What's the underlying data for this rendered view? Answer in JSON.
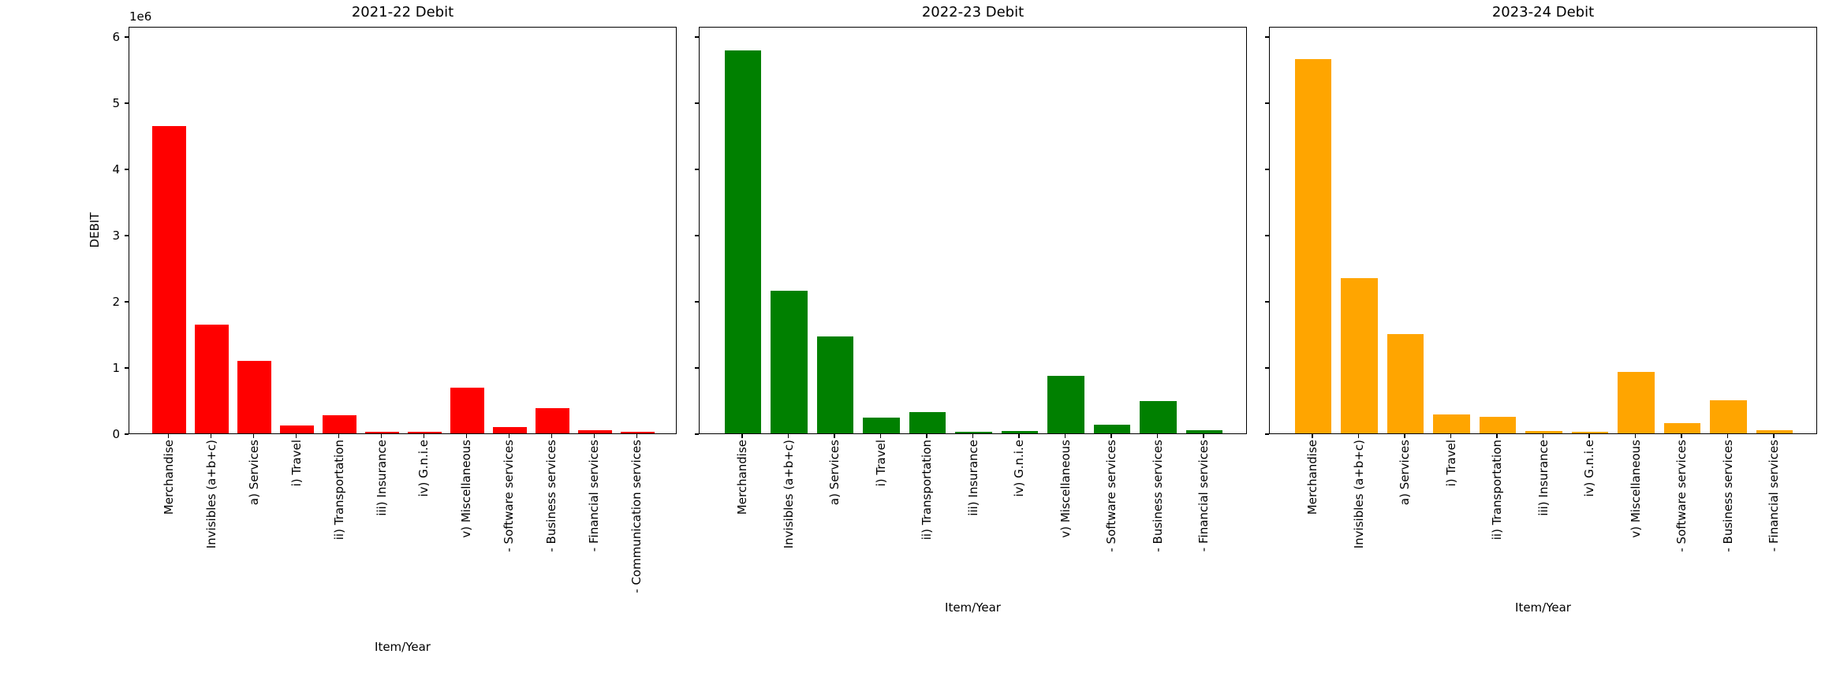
{
  "figure": {
    "background": "#ffffff",
    "text_color": "#000000",
    "spine_color": "#000000"
  },
  "shared_y_axis": {
    "ylabel": "DEBIT",
    "offset_text": "1e6",
    "tick_labels": [
      "0",
      "1",
      "2",
      "3",
      "4",
      "5",
      "6"
    ],
    "tick_values": [
      0,
      1000000,
      2000000,
      3000000,
      4000000,
      5000000,
      6000000
    ]
  },
  "chart_data": [
    {
      "type": "bar",
      "title": "2021-22 Debit",
      "xlabel": "Item/Year",
      "ylabel": "DEBIT",
      "bar_color": "#ff0000",
      "ylim": [
        0,
        6155000
      ],
      "y_tick_step": 1000000,
      "y_offset_notation": "1e6",
      "grid": false,
      "x_tick_rotation": 90,
      "categories": [
        "Merchandise",
        "Invisibles (a+b+c)",
        "a) Services",
        "i) Travel",
        "ii) Transportation",
        "iii) Insurance",
        "iv) G.n.i.e",
        "v) Miscellaneous",
        "- Software services",
        "- Business services",
        "- Financial services",
        "- Communication services"
      ],
      "values": [
        4640000,
        1640000,
        1100000,
        125000,
        270000,
        22000,
        25000,
        695000,
        92000,
        380000,
        45000,
        20000
      ]
    },
    {
      "type": "bar",
      "title": "2022-23 Debit",
      "xlabel": "Item/Year",
      "ylabel": "",
      "bar_color": "#008000",
      "ylim": [
        0,
        6155000
      ],
      "y_tick_step": 1000000,
      "grid": false,
      "x_tick_rotation": 90,
      "categories": [
        "Merchandise",
        "Invisibles (a+b+c)",
        "a) Services",
        "i) Travel",
        "ii) Transportation",
        "iii) Insurance",
        "iv) G.n.i.e",
        "v) Miscellaneous",
        "- Software services",
        "- Business services",
        "- Financial services"
      ],
      "values": [
        5790000,
        2160000,
        1465000,
        235000,
        325000,
        28000,
        30000,
        875000,
        135000,
        490000,
        42000
      ]
    },
    {
      "type": "bar",
      "title": "2023-24 Debit",
      "xlabel": "Item/Year",
      "ylabel": "",
      "bar_color": "#ffa500",
      "ylim": [
        0,
        6155000
      ],
      "y_tick_step": 1000000,
      "grid": false,
      "x_tick_rotation": 90,
      "categories": [
        "Merchandise",
        "Invisibles (a+b+c)",
        "a) Services",
        "i) Travel",
        "ii) Transportation",
        "iii) Insurance",
        "iv) G.n.i.e",
        "v) Miscellaneous",
        "- Software services",
        "- Business services",
        "- Financial services"
      ],
      "values": [
        5660000,
        2350000,
        1500000,
        280000,
        250000,
        35000,
        22000,
        930000,
        150000,
        500000,
        50000
      ]
    }
  ]
}
